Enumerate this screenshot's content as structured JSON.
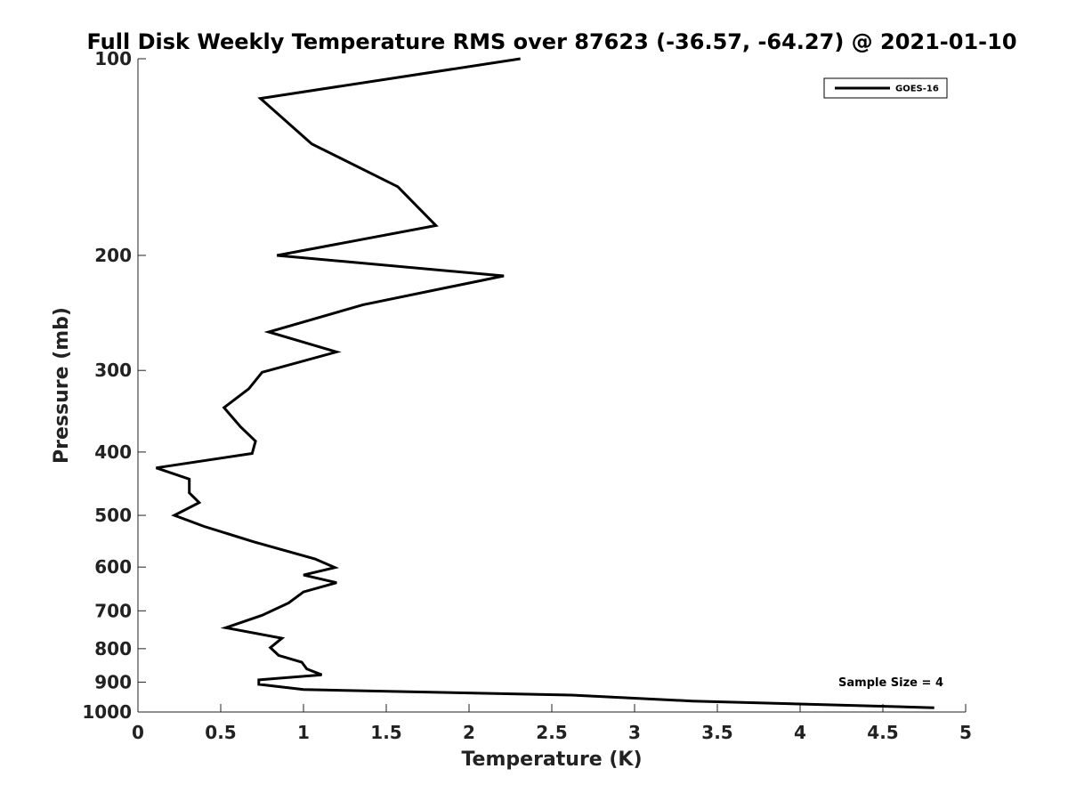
{
  "chart_data": {
    "type": "line",
    "title": "Full Disk Weekly Temperature RMS over 87623 (-36.57, -64.27) @ 2021-01-10",
    "xlabel": "Temperature (K)",
    "ylabel": "Pressure (mb)",
    "xlim": [
      0,
      5
    ],
    "ylim": [
      1000,
      100
    ],
    "y_scale": "log",
    "y_reversed": true,
    "grid": false,
    "x_ticks": [
      0,
      0.5,
      1,
      1.5,
      2,
      2.5,
      3,
      3.5,
      4,
      4.5,
      5
    ],
    "x_tick_labels": [
      "0",
      "0.5",
      "1",
      "1.5",
      "2",
      "2.5",
      "3",
      "3.5",
      "4",
      "4.5",
      "5"
    ],
    "y_ticks": [
      100,
      200,
      300,
      400,
      500,
      600,
      700,
      800,
      900,
      1000
    ],
    "y_tick_labels": [
      "100",
      "200",
      "300",
      "400",
      "500",
      "600",
      "700",
      "800",
      "900",
      "1000"
    ],
    "legend_position": "top-right",
    "line_color": "#000000",
    "series": [
      {
        "name": "GOES-16",
        "x": [
          2.31,
          0.74,
          1.05,
          1.57,
          1.8,
          0.84,
          2.21,
          1.36,
          0.79,
          1.2,
          0.75,
          0.67,
          0.52,
          0.62,
          0.71,
          0.69,
          0.11,
          0.31,
          0.31,
          0.37,
          0.22,
          0.4,
          0.7,
          1.07,
          1.19,
          1.0,
          1.2,
          1.0,
          0.91,
          0.75,
          0.53,
          0.87,
          0.8,
          0.85,
          0.99,
          1.02,
          1.11,
          0.73,
          0.73,
          1.0,
          2.62,
          3.35,
          4.81
        ],
        "y": [
          100,
          115,
          135,
          157,
          180,
          200,
          215,
          238,
          262,
          281,
          302,
          320,
          342,
          366,
          385,
          402,
          423,
          440,
          462,
          478,
          500,
          520,
          549,
          583,
          601,
          617,
          634,
          655,
          681,
          711,
          743,
          771,
          797,
          819,
          839,
          859,
          877,
          893,
          907,
          924,
          942,
          962,
          985
        ]
      }
    ],
    "annotation": "Sample Size = 4"
  }
}
